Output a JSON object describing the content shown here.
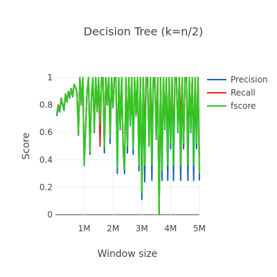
{
  "chart_data": {
    "type": "line",
    "title": "Decision Tree (k=n/2)",
    "xlabel": "Window size",
    "ylabel": "Score",
    "xlim": [
      0,
      5000000
    ],
    "ylim": [
      0,
      1
    ],
    "x_ticks": [
      {
        "value": 1000000,
        "label": "1M"
      },
      {
        "value": 2000000,
        "label": "2M"
      },
      {
        "value": 3000000,
        "label": "3M"
      },
      {
        "value": 4000000,
        "label": "4M"
      },
      {
        "value": 5000000,
        "label": "5M"
      }
    ],
    "y_ticks": [
      {
        "value": 0,
        "label": "0"
      },
      {
        "value": 0.2,
        "label": "0.2"
      },
      {
        "value": 0.4,
        "label": "0.4"
      },
      {
        "value": 0.6,
        "label": "0.6"
      },
      {
        "value": 0.8,
        "label": "0.8"
      },
      {
        "value": 1,
        "label": "1"
      }
    ],
    "legend_position": "top-right",
    "x": [
      50000,
      100000,
      150000,
      200000,
      250000,
      300000,
      350000,
      400000,
      450000,
      500000,
      550000,
      600000,
      650000,
      700000,
      750000,
      800000,
      850000,
      900000,
      950000,
      1000000,
      1050000,
      1100000,
      1150000,
      1200000,
      1250000,
      1300000,
      1350000,
      1400000,
      1450000,
      1500000,
      1550000,
      1600000,
      1650000,
      1700000,
      1750000,
      1800000,
      1850000,
      1900000,
      1950000,
      2000000,
      2050000,
      2100000,
      2150000,
      2200000,
      2250000,
      2300000,
      2350000,
      2400000,
      2450000,
      2500000,
      2550000,
      2600000,
      2650000,
      2700000,
      2750000,
      2800000,
      2850000,
      2900000,
      2950000,
      3000000,
      3050000,
      3100000,
      3150000,
      3200000,
      3250000,
      3300000,
      3350000,
      3400000,
      3450000,
      3500000,
      3550000,
      3600000,
      3650000,
      3700000,
      3750000,
      3800000,
      3850000,
      3900000,
      3950000,
      4000000,
      4050000,
      4100000,
      4150000,
      4200000,
      4250000,
      4300000,
      4350000,
      4400000,
      4450000,
      4500000,
      4550000,
      4600000,
      4650000,
      4700000,
      4750000,
      4800000,
      4850000,
      4900000,
      4950000,
      5000000
    ],
    "series": [
      {
        "name": "Precision",
        "color": "#1f5fb4",
        "values": [
          0.72,
          0.78,
          0.75,
          0.84,
          0.8,
          0.76,
          0.88,
          0.82,
          0.9,
          0.85,
          0.92,
          0.86,
          0.95,
          0.93,
          0.88,
          0.58,
          1,
          0.8,
          1,
          0.36,
          0.62,
          0.9,
          1,
          0.44,
          0.85,
          1,
          0.6,
          1,
          0.75,
          1,
          0.64,
          1,
          1,
          0.45,
          1,
          0.8,
          1,
          0.52,
          1,
          0.78,
          1,
          1,
          0.3,
          1,
          0.62,
          1,
          0.48,
          0.3,
          1,
          0.45,
          1,
          0.65,
          1,
          0.44,
          1,
          0.72,
          1,
          0.32,
          1,
          0.11,
          1,
          0.24,
          1,
          1,
          0.5,
          1,
          0.25,
          1,
          1,
          0.55,
          1,
          0,
          1,
          0.25,
          1,
          0.62,
          1,
          0.25,
          1,
          0.48,
          1,
          0.25,
          1,
          1,
          0.6,
          1,
          0.25,
          1,
          0.48,
          1,
          1,
          0.25,
          1,
          0.6,
          1,
          0.25,
          1,
          0.48,
          1,
          0.25
        ]
      },
      {
        "name": "Recall",
        "color": "#d62728",
        "values": [
          0.74,
          0.8,
          0.76,
          0.85,
          0.81,
          0.77,
          0.88,
          0.83,
          0.9,
          0.86,
          0.92,
          0.87,
          0.95,
          0.93,
          0.89,
          0.6,
          1,
          0.81,
          1,
          0.38,
          0.64,
          0.9,
          1,
          0.48,
          0.86,
          1,
          0.62,
          1,
          0.76,
          1,
          0.5,
          1,
          1,
          0.52,
          1,
          0.8,
          1,
          0.6,
          1,
          0.79,
          1,
          1,
          0.38,
          1,
          0.64,
          1,
          0.52,
          0.36,
          1,
          0.55,
          1,
          0.66,
          1,
          0.52,
          1,
          0.73,
          1,
          0.4,
          1,
          0.2,
          1,
          0.6,
          1,
          1,
          0.5,
          1,
          0.58,
          1,
          1,
          0.57,
          1,
          0,
          1,
          0.4,
          1,
          0.64,
          1,
          0.5,
          1,
          0.55,
          1,
          0.5,
          1,
          1,
          0.62,
          1,
          0.66,
          1,
          0.5,
          1,
          1,
          0.5,
          1,
          0.62,
          1,
          0.5,
          1,
          0.55,
          1,
          0.42
        ]
      },
      {
        "name": "fscore",
        "color": "#2ecc1e",
        "values": [
          0.73,
          0.79,
          0.755,
          0.845,
          0.805,
          0.765,
          0.88,
          0.825,
          0.9,
          0.855,
          0.92,
          0.865,
          0.95,
          0.93,
          0.885,
          0.59,
          1,
          0.805,
          1,
          0.37,
          0.63,
          0.9,
          1,
          0.46,
          0.855,
          1,
          0.61,
          1,
          0.755,
          1,
          0.66,
          1,
          1,
          0.49,
          1,
          0.8,
          1,
          0.56,
          1,
          0.785,
          1,
          1,
          0.34,
          1,
          0.63,
          1,
          0.5,
          0.33,
          1,
          0.5,
          1,
          0.655,
          1,
          0.48,
          1,
          0.725,
          1,
          0.36,
          1,
          0.16,
          1,
          0.36,
          1,
          1,
          0.5,
          1,
          0.36,
          1,
          1,
          0.56,
          1,
          0,
          1,
          0.32,
          1,
          0.63,
          1,
          0.36,
          1,
          0.52,
          1,
          0.36,
          1,
          1,
          0.61,
          1,
          0.36,
          1,
          0.52,
          1,
          1,
          0.36,
          1,
          0.61,
          1,
          0.36,
          1,
          0.52,
          1,
          0.3
        ]
      }
    ]
  }
}
